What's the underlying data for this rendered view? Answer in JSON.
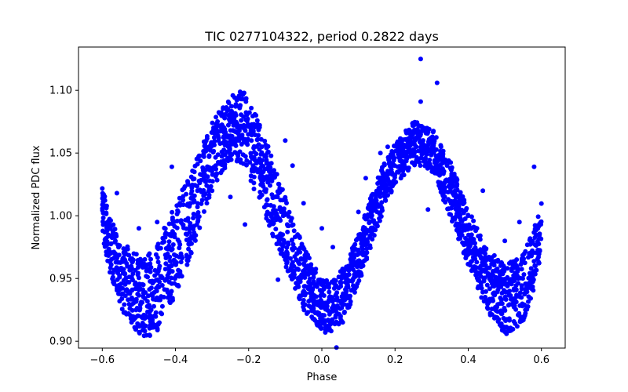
{
  "chart_data": {
    "type": "scatter",
    "title": "TIC 0277104322, period 0.2822 days",
    "xlabel": "Phase",
    "ylabel": "Normalized PDC flux",
    "xlim": [
      -0.665,
      0.665
    ],
    "ylim": [
      0.8945,
      1.1345
    ],
    "grid": false,
    "marker_color": "#0000ff",
    "x_ticks": [
      -0.6,
      -0.4,
      -0.2,
      0.0,
      0.2,
      0.4,
      0.6
    ],
    "x_tick_labels": [
      "−0.6",
      "−0.4",
      "−0.2",
      "0.0",
      "0.2",
      "0.4",
      "0.6"
    ],
    "y_ticks": [
      0.9,
      0.95,
      1.0,
      1.05,
      1.1
    ],
    "y_tick_labels": [
      "0.90",
      "0.95",
      "1.00",
      "1.05",
      "1.10"
    ],
    "phase_range": [
      -0.6,
      0.6
    ],
    "model": {
      "description": "Envelope of the phase-folded light curve (lower and upper flux bound per phase)",
      "phase": [
        -0.6,
        -0.58,
        -0.55,
        -0.5,
        -0.47,
        -0.45,
        -0.4,
        -0.35,
        -0.3,
        -0.25,
        -0.22,
        -0.2,
        -0.15,
        -0.1,
        -0.05,
        0.0,
        0.03,
        0.05,
        0.1,
        0.15,
        0.2,
        0.25,
        0.27,
        0.3,
        0.35,
        0.4,
        0.45,
        0.5,
        0.55,
        0.58,
        0.6
      ],
      "lower": [
        0.985,
        0.955,
        0.925,
        0.906,
        0.902,
        0.906,
        0.935,
        0.975,
        1.02,
        1.045,
        1.04,
        1.03,
        0.995,
        0.96,
        0.925,
        0.908,
        0.903,
        0.91,
        0.945,
        0.99,
        1.025,
        1.04,
        1.04,
        1.035,
        1.0,
        0.96,
        0.925,
        0.905,
        0.915,
        0.94,
        0.97
      ],
      "upper": [
        1.025,
        1.0,
        0.98,
        0.968,
        0.97,
        0.978,
        1.01,
        1.04,
        1.075,
        1.095,
        1.1,
        1.095,
        1.06,
        1.015,
        0.975,
        0.95,
        0.948,
        0.955,
        0.985,
        1.03,
        1.06,
        1.075,
        1.075,
        1.07,
        1.045,
        1.005,
        0.975,
        0.96,
        0.97,
        0.99,
        1.01
      ]
    },
    "outliers": [
      {
        "x": 0.27,
        "y": 1.125
      },
      {
        "x": 0.315,
        "y": 1.106
      },
      {
        "x": 0.27,
        "y": 1.091
      },
      {
        "x": 0.27,
        "y": 1.065
      },
      {
        "x": 0.58,
        "y": 1.039
      },
      {
        "x": -0.41,
        "y": 1.039
      },
      {
        "x": -0.56,
        "y": 1.018
      },
      {
        "x": -0.5,
        "y": 0.99
      },
      {
        "x": -0.45,
        "y": 0.995
      },
      {
        "x": -0.21,
        "y": 0.993
      },
      {
        "x": -0.12,
        "y": 0.949
      },
      {
        "x": 0.29,
        "y": 1.005
      },
      {
        "x": 0.16,
        "y": 1.05
      },
      {
        "x": 0.18,
        "y": 1.055
      },
      {
        "x": -0.08,
        "y": 1.04
      },
      {
        "x": -0.1,
        "y": 1.06
      },
      {
        "x": -0.25,
        "y": 1.015
      },
      {
        "x": -0.3,
        "y": 1.02
      },
      {
        "x": 0.12,
        "y": 0.97
      },
      {
        "x": 0.03,
        "y": 0.975
      },
      {
        "x": 0.0,
        "y": 0.99
      },
      {
        "x": 0.04,
        "y": 0.895
      },
      {
        "x": 0.1,
        "y": 1.003
      },
      {
        "x": 0.12,
        "y": 1.03
      },
      {
        "x": -0.05,
        "y": 1.01
      },
      {
        "x": 0.44,
        "y": 1.02
      },
      {
        "x": 0.5,
        "y": 0.98
      },
      {
        "x": 0.54,
        "y": 0.995
      },
      {
        "x": -0.06,
        "y": 0.95
      }
    ]
  }
}
